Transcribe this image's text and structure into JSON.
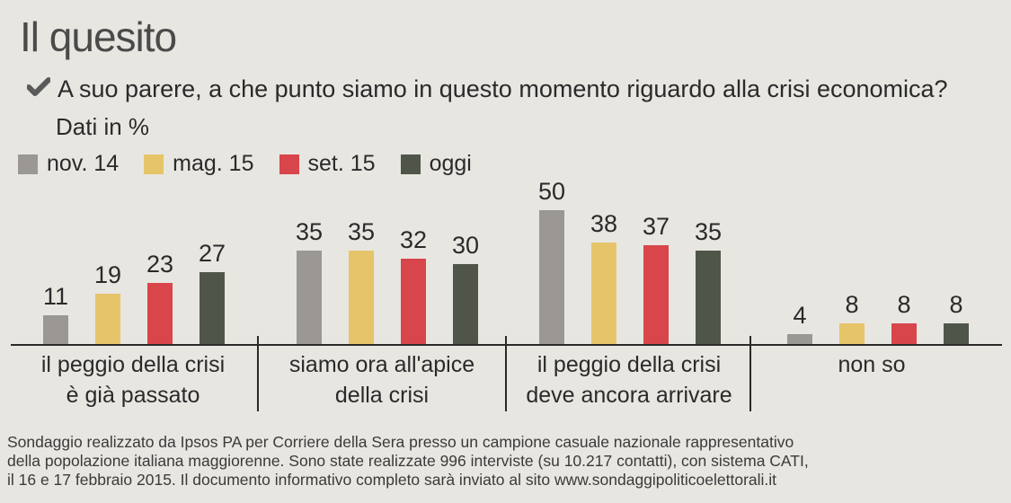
{
  "header": {
    "title": "Il quesito",
    "question": "A suo parere, a che punto siamo in questo momento riguardo alla crisi economica?",
    "units": "Dati in %"
  },
  "chart_data": {
    "type": "bar",
    "categories": [
      [
        "il peggio della crisi",
        "è già passato"
      ],
      [
        "siamo ora all'apice",
        "della crisi"
      ],
      [
        "il peggio della crisi",
        "deve ancora arrivare"
      ],
      [
        "non so"
      ]
    ],
    "series": [
      {
        "name": "nov. 14",
        "values": [
          11,
          35,
          50,
          4
        ],
        "color": "#9b9893"
      },
      {
        "name": "mag. 15",
        "values": [
          19,
          35,
          38,
          8
        ],
        "color": "#e5c46a"
      },
      {
        "name": "set. 15",
        "values": [
          23,
          32,
          37,
          8
        ],
        "color": "#d8454a"
      },
      {
        "name": "oggi",
        "values": [
          27,
          30,
          35,
          8
        ],
        "color": "#4f5649"
      }
    ],
    "ylim": [
      0,
      50
    ],
    "legend": "top-left",
    "grid": false
  },
  "footer": {
    "lines": [
      "Sondaggio realizzato da Ipsos PA per Corriere della Sera presso un campione casuale nazionale rappresentativo",
      "della popolazione italiana maggiorenne. Sono state realizzate 996 interviste (su 10.217 contatti), con sistema CATI,",
      "il 16 e 17 febbraio 2015. Il documento informativo completo sarà inviato al sito www.sondaggipoliticoelettorali.it"
    ]
  }
}
